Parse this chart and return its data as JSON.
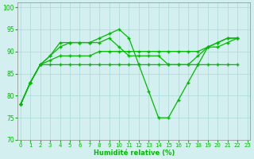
{
  "xlabel": "Humidité relative (%)",
  "xlim": [
    -0.3,
    23.3
  ],
  "ylim": [
    70,
    101
  ],
  "yticks": [
    70,
    75,
    80,
    85,
    90,
    95,
    100
  ],
  "xticks": [
    0,
    1,
    2,
    3,
    4,
    5,
    6,
    7,
    8,
    9,
    10,
    11,
    12,
    13,
    14,
    15,
    16,
    17,
    18,
    19,
    20,
    21,
    22,
    23
  ],
  "bg_color": "#d4efef",
  "grid_color": "#aadada",
  "line_color": "#00bb00",
  "curves": [
    {
      "x": [
        0,
        1,
        2,
        3,
        4,
        5,
        6,
        7,
        8,
        9,
        10,
        11,
        12,
        13,
        14,
        15,
        16,
        17,
        18,
        19,
        20,
        21,
        22
      ],
      "y": [
        78,
        83,
        87,
        89,
        92,
        92,
        92,
        92,
        93,
        94,
        95,
        93,
        87,
        81,
        75,
        75,
        79,
        83,
        87,
        91,
        92,
        93,
        93
      ]
    },
    {
      "x": [
        0,
        1,
        2,
        3,
        4,
        5,
        6,
        7,
        8,
        9,
        10,
        11,
        12,
        13,
        14,
        15,
        16,
        17,
        18,
        19,
        20,
        21,
        22
      ],
      "y": [
        78,
        83,
        87,
        89,
        91,
        92,
        92,
        92,
        92,
        93,
        91,
        89,
        89,
        89,
        89,
        87,
        87,
        87,
        89,
        91,
        91,
        92,
        93
      ]
    },
    {
      "x": [
        0,
        1,
        2,
        3,
        4,
        5,
        6,
        7,
        8,
        9,
        10,
        11,
        12,
        13,
        14,
        15,
        16,
        17,
        18,
        19,
        20,
        21,
        22
      ],
      "y": [
        78,
        83,
        87,
        88,
        89,
        89,
        89,
        89,
        90,
        90,
        90,
        90,
        90,
        90,
        90,
        90,
        90,
        90,
        90,
        91,
        92,
        93,
        93
      ]
    },
    {
      "x": [
        0,
        1,
        2,
        3,
        4,
        5,
        6,
        7,
        8,
        9,
        10,
        11,
        12,
        13,
        14,
        15,
        16,
        17,
        18,
        19,
        20,
        21,
        22
      ],
      "y": [
        78,
        83,
        87,
        87,
        87,
        87,
        87,
        87,
        87,
        87,
        87,
        87,
        87,
        87,
        87,
        87,
        87,
        87,
        87,
        87,
        87,
        87,
        87
      ]
    }
  ]
}
